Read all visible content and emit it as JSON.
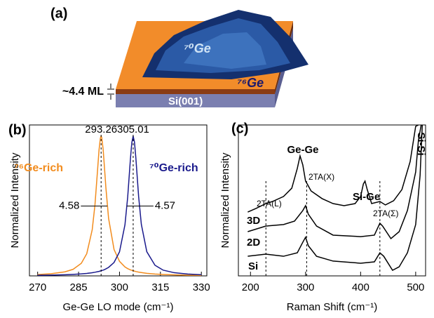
{
  "diagram": {
    "panel": "(a)",
    "dot": "⁷⁰Ge",
    "layer": "⁷⁶Ge",
    "thickness": "~4.4 ML",
    "substrate": "Si(001)"
  },
  "chart_data": [
    {
      "type": "line",
      "panel": "(b)",
      "xlabel": "Ge-Ge LO mode (cm⁻¹)",
      "ylabel": "Normalized Intensity",
      "xlim": [
        267,
        332
      ],
      "ylim": [
        0,
        1.08
      ],
      "xticks": [
        270,
        285,
        300,
        315,
        330
      ],
      "x": [
        270,
        275,
        280,
        283,
        286,
        288,
        290,
        291,
        292,
        292.5,
        293,
        293.26,
        293.5,
        294,
        294.5,
        295,
        296,
        298,
        300,
        302,
        303,
        304,
        304.5,
        305,
        305.5,
        306,
        307,
        308,
        310,
        313,
        316,
        320,
        325,
        330
      ],
      "series": [
        {
          "name": "⁷⁶Ge-rich",
          "color": "#f28c1e",
          "values": [
            0.0096,
            0.0155,
            0.029,
            0.047,
            0.09,
            0.159,
            0.33,
            0.507,
            0.768,
            0.901,
            0.987,
            1,
            0.989,
            0.906,
            0.773,
            0.634,
            0.411,
            0.189,
            0.104,
            0.064,
            0.052,
            0.043,
            0.04,
            0.037,
            0.034,
            0.031,
            0.027,
            0.024,
            0.018,
            0.013,
            0.01,
            0.0073,
            0.0052,
            0.0039
          ]
        },
        {
          "name": "⁷⁰Ge-rich",
          "color": "#1a1a8c",
          "values": [
            0.0042,
            0.0058,
            0.0083,
            0.0107,
            0.0142,
            0.0177,
            0.0226,
            0.026,
            0.03,
            0.032,
            0.035,
            0.036,
            0.038,
            0.041,
            0.045,
            0.05,
            0.061,
            0.096,
            0.172,
            0.366,
            0.564,
            0.837,
            0.952,
            1,
            0.956,
            0.842,
            0.569,
            0.369,
            0.173,
            0.076,
            0.041,
            0.023,
            0.013,
            0.0083
          ]
        }
      ],
      "peaks": [
        {
          "position": 293.26,
          "fwhm": 4.58
        },
        {
          "position": 305.01,
          "fwhm": 4.57
        }
      ]
    },
    {
      "type": "line",
      "panel": "(c)",
      "xlabel": "Raman Shift (cm⁻¹)",
      "ylabel": "Normalized Intensity",
      "xlim": [
        178,
        518
      ],
      "ylim": [
        0,
        100
      ],
      "xticks": [
        200,
        300,
        400,
        500
      ],
      "series": [
        {
          "name": "3D",
          "color": "#000000",
          "x": [
            195,
            210,
            228,
            240,
            260,
            275,
            285,
            290,
            295,
            300,
            303,
            310,
            330,
            350,
            370,
            390,
            400,
            405,
            408,
            412,
            420,
            435,
            445,
            460,
            475,
            490,
            500,
            505
          ],
          "values": [
            42.3,
            44.7,
            47.9,
            49.3,
            52.6,
            58.1,
            71.2,
            79.5,
            73.5,
            62.8,
            60.9,
            56.3,
            51.2,
            47.9,
            46.5,
            47.9,
            52.6,
            60.9,
            62.8,
            57.2,
            47.9,
            49.3,
            47.0,
            49.8,
            57.2,
            75.8,
            99.1,
            100
          ]
        },
        {
          "name": "2D",
          "color": "#000000",
          "x": [
            195,
            228,
            260,
            280,
            295,
            300,
            305,
            320,
            350,
            400,
            425,
            435,
            440,
            455,
            470,
            485,
            500,
            505,
            510
          ],
          "values": [
            29.3,
            33.0,
            34.0,
            36.3,
            43.3,
            46.5,
            40.9,
            33.0,
            27.0,
            26.0,
            27.0,
            34.9,
            33.0,
            24.7,
            29.3,
            43.3,
            68.8,
            89.8,
            100
          ]
        },
        {
          "name": "Si",
          "color": "#000000",
          "x": [
            195,
            228,
            260,
            285,
            295,
            300,
            305,
            320,
            350,
            400,
            425,
            435,
            442,
            458,
            470,
            485,
            500,
            508,
            512
          ],
          "values": [
            13.0,
            14.4,
            13.0,
            15.3,
            22.3,
            25.6,
            20.0,
            13.0,
            9.8,
            8.4,
            9.3,
            15.3,
            13.0,
            3.7,
            6.0,
            15.3,
            34.0,
            66.5,
            100
          ]
        }
      ],
      "guide_lines": [
        228,
        302,
        435
      ],
      "annotations": [
        "Ge-Ge",
        "2TA(X)",
        "Si-Ge",
        "2TA(L)",
        "2TA(Σ)",
        "Si-Si"
      ]
    }
  ]
}
